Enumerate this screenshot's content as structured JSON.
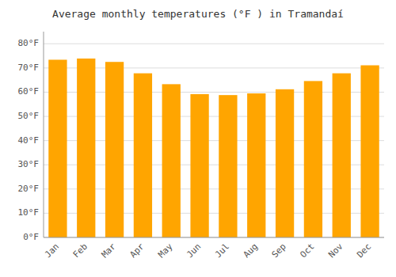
{
  "chart_data": {
    "type": "bar",
    "title": "Average monthly temperatures (°F ) in Tramandaí",
    "categories": [
      "Jan",
      "Feb",
      "Mar",
      "Apr",
      "May",
      "Jun",
      "Jul",
      "Aug",
      "Sep",
      "Oct",
      "Nov",
      "Dec"
    ],
    "values": [
      73.4,
      73.9,
      72.5,
      67.8,
      63.3,
      59.2,
      58.8,
      59.5,
      61.2,
      64.6,
      67.8,
      71.1
    ],
    "color": "#FFA500",
    "ylim": [
      0,
      85
    ],
    "yticks": [
      {
        "value": 0,
        "label": "0°F"
      },
      {
        "value": 10,
        "label": "10°F"
      },
      {
        "value": 20,
        "label": "20°F"
      },
      {
        "value": 30,
        "label": "30°F"
      },
      {
        "value": 40,
        "label": "40°F"
      },
      {
        "value": 50,
        "label": "50°F"
      },
      {
        "value": 60,
        "label": "60°F"
      },
      {
        "value": 70,
        "label": "70°F"
      },
      {
        "value": 80,
        "label": "80°F"
      }
    ],
    "grid": true
  }
}
